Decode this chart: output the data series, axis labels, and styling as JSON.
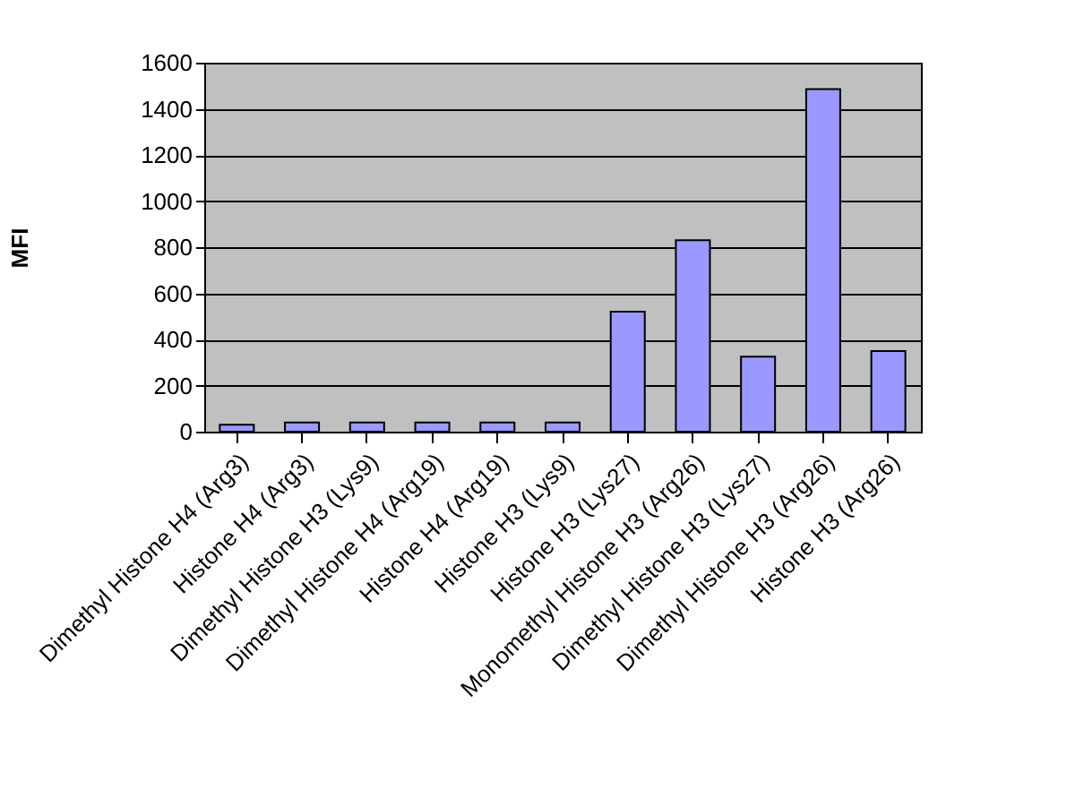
{
  "chart_data": {
    "type": "bar",
    "ylabel": "MFI",
    "categories": [
      "Dimethyl Histone H4 (Arg3)",
      "Histone H4 (Arg3)",
      "Dimethyl Histone H3 (Lys9)",
      "Dimethyl Histone H4 (Arg19)",
      "Histone H4 (Arg19)",
      "Histone H3 (Lys9)",
      "Histone H3 (Lys27)",
      "Monomethyl Histone H3 (Arg26)",
      "Dimethyl Histone H3 (Lys27)",
      "Dimethyl Histone H3 (Arg26)",
      "Histone H3 (Arg26)"
    ],
    "values": [
      30,
      40,
      40,
      40,
      40,
      40,
      520,
      830,
      325,
      1485,
      350
    ],
    "color": "#9999ff",
    "ylim": [
      0,
      1600
    ],
    "yticks": [
      0,
      200,
      400,
      600,
      800,
      1000,
      1200,
      1400,
      1600
    ],
    "grid": "y"
  }
}
